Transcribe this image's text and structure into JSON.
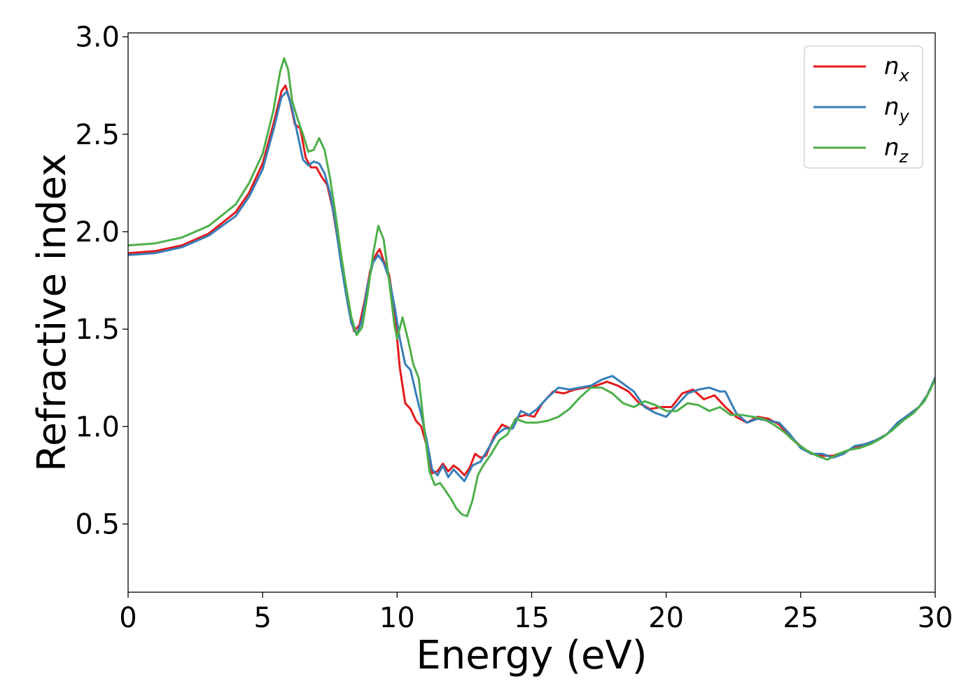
{
  "chart_data": {
    "type": "line",
    "xlabel": "Energy (eV)",
    "ylabel": "Refractive index",
    "xlim": [
      0,
      30
    ],
    "ylim": [
      0.15,
      3.02
    ],
    "xticks": [
      0,
      5,
      10,
      15,
      20,
      25,
      30
    ],
    "yticks": [
      0.5,
      1.0,
      1.5,
      2.0,
      2.5,
      3.0
    ],
    "xtick_labels": [
      "0",
      "5",
      "10",
      "15",
      "20",
      "25",
      "30"
    ],
    "ytick_labels": [
      "0.5",
      "1.0",
      "1.5",
      "2.0",
      "2.5",
      "3.0"
    ],
    "grid": false,
    "legend_position": "top-right",
    "series": [
      {
        "name": "n",
        "subscript": "x",
        "color": "#e41a1c",
        "points": [
          [
            0,
            1.89
          ],
          [
            1,
            1.9
          ],
          [
            2,
            1.93
          ],
          [
            3,
            1.99
          ],
          [
            4,
            2.1
          ],
          [
            4.5,
            2.2
          ],
          [
            5,
            2.35
          ],
          [
            5.4,
            2.55
          ],
          [
            5.7,
            2.72
          ],
          [
            5.85,
            2.75
          ],
          [
            6.0,
            2.68
          ],
          [
            6.2,
            2.55
          ],
          [
            6.4,
            2.53
          ],
          [
            6.6,
            2.38
          ],
          [
            6.8,
            2.33
          ],
          [
            7.0,
            2.33
          ],
          [
            7.2,
            2.28
          ],
          [
            7.4,
            2.24
          ],
          [
            7.6,
            2.12
          ],
          [
            7.8,
            1.95
          ],
          [
            8.0,
            1.77
          ],
          [
            8.2,
            1.6
          ],
          [
            8.4,
            1.49
          ],
          [
            8.6,
            1.52
          ],
          [
            8.8,
            1.65
          ],
          [
            9.0,
            1.8
          ],
          [
            9.2,
            1.88
          ],
          [
            9.35,
            1.91
          ],
          [
            9.5,
            1.85
          ],
          [
            9.7,
            1.78
          ],
          [
            9.9,
            1.6
          ],
          [
            10.1,
            1.3
          ],
          [
            10.3,
            1.12
          ],
          [
            10.5,
            1.09
          ],
          [
            10.7,
            1.03
          ],
          [
            10.9,
            1.0
          ],
          [
            11.1,
            0.9
          ],
          [
            11.3,
            0.76
          ],
          [
            11.5,
            0.77
          ],
          [
            11.7,
            0.81
          ],
          [
            11.9,
            0.77
          ],
          [
            12.1,
            0.8
          ],
          [
            12.3,
            0.78
          ],
          [
            12.5,
            0.75
          ],
          [
            12.7,
            0.79
          ],
          [
            12.9,
            0.86
          ],
          [
            13.1,
            0.84
          ],
          [
            13.3,
            0.85
          ],
          [
            13.6,
            0.95
          ],
          [
            13.9,
            1.01
          ],
          [
            14.2,
            0.99
          ],
          [
            14.5,
            1.05
          ],
          [
            14.8,
            1.06
          ],
          [
            15.1,
            1.05
          ],
          [
            15.4,
            1.12
          ],
          [
            15.8,
            1.18
          ],
          [
            16.2,
            1.17
          ],
          [
            16.6,
            1.19
          ],
          [
            17.0,
            1.2
          ],
          [
            17.4,
            1.21
          ],
          [
            17.8,
            1.23
          ],
          [
            18.2,
            1.21
          ],
          [
            18.6,
            1.18
          ],
          [
            19.0,
            1.12
          ],
          [
            19.4,
            1.09
          ],
          [
            19.8,
            1.1
          ],
          [
            20.2,
            1.1
          ],
          [
            20.6,
            1.17
          ],
          [
            21.0,
            1.19
          ],
          [
            21.4,
            1.14
          ],
          [
            21.8,
            1.16
          ],
          [
            22.2,
            1.1
          ],
          [
            22.6,
            1.05
          ],
          [
            23.0,
            1.02
          ],
          [
            23.4,
            1.05
          ],
          [
            23.8,
            1.04
          ],
          [
            24.2,
            1.01
          ],
          [
            24.6,
            0.95
          ],
          [
            25.0,
            0.9
          ],
          [
            25.4,
            0.86
          ],
          [
            25.8,
            0.85
          ],
          [
            26.2,
            0.85
          ],
          [
            26.6,
            0.87
          ],
          [
            27.0,
            0.89
          ],
          [
            27.4,
            0.91
          ],
          [
            27.8,
            0.93
          ],
          [
            28.2,
            0.96
          ],
          [
            28.6,
            1.01
          ],
          [
            29.0,
            1.06
          ],
          [
            29.4,
            1.1
          ],
          [
            29.7,
            1.16
          ],
          [
            30,
            1.25
          ]
        ]
      },
      {
        "name": "n",
        "subscript": "y",
        "color": "#377eb8",
        "points": [
          [
            0,
            1.88
          ],
          [
            1,
            1.89
          ],
          [
            2,
            1.92
          ],
          [
            3,
            1.98
          ],
          [
            4,
            2.08
          ],
          [
            4.5,
            2.18
          ],
          [
            5,
            2.32
          ],
          [
            5.4,
            2.52
          ],
          [
            5.7,
            2.69
          ],
          [
            5.9,
            2.72
          ],
          [
            6.1,
            2.63
          ],
          [
            6.3,
            2.5
          ],
          [
            6.5,
            2.37
          ],
          [
            6.7,
            2.34
          ],
          [
            6.9,
            2.36
          ],
          [
            7.1,
            2.35
          ],
          [
            7.3,
            2.3
          ],
          [
            7.5,
            2.2
          ],
          [
            7.7,
            2.05
          ],
          [
            7.9,
            1.85
          ],
          [
            8.1,
            1.68
          ],
          [
            8.3,
            1.53
          ],
          [
            8.5,
            1.47
          ],
          [
            8.7,
            1.55
          ],
          [
            8.9,
            1.72
          ],
          [
            9.1,
            1.84
          ],
          [
            9.3,
            1.88
          ],
          [
            9.5,
            1.84
          ],
          [
            9.7,
            1.76
          ],
          [
            9.9,
            1.62
          ],
          [
            10.1,
            1.45
          ],
          [
            10.3,
            1.32
          ],
          [
            10.5,
            1.29
          ],
          [
            10.7,
            1.17
          ],
          [
            10.9,
            1.06
          ],
          [
            11.1,
            0.93
          ],
          [
            11.3,
            0.78
          ],
          [
            11.5,
            0.75
          ],
          [
            11.7,
            0.8
          ],
          [
            11.9,
            0.74
          ],
          [
            12.1,
            0.78
          ],
          [
            12.3,
            0.75
          ],
          [
            12.5,
            0.72
          ],
          [
            12.8,
            0.8
          ],
          [
            13.1,
            0.82
          ],
          [
            13.4,
            0.89
          ],
          [
            13.7,
            0.96
          ],
          [
            14.0,
            0.99
          ],
          [
            14.3,
            0.99
          ],
          [
            14.6,
            1.08
          ],
          [
            14.9,
            1.06
          ],
          [
            15.2,
            1.09
          ],
          [
            15.6,
            1.15
          ],
          [
            16.0,
            1.2
          ],
          [
            16.4,
            1.19
          ],
          [
            16.8,
            1.2
          ],
          [
            17.2,
            1.21
          ],
          [
            17.6,
            1.24
          ],
          [
            18.0,
            1.26
          ],
          [
            18.4,
            1.22
          ],
          [
            18.8,
            1.18
          ],
          [
            19.2,
            1.1
          ],
          [
            19.6,
            1.07
          ],
          [
            20.0,
            1.05
          ],
          [
            20.4,
            1.11
          ],
          [
            20.8,
            1.17
          ],
          [
            21.2,
            1.19
          ],
          [
            21.6,
            1.2
          ],
          [
            22.0,
            1.18
          ],
          [
            22.2,
            1.18
          ],
          [
            22.6,
            1.07
          ],
          [
            23.0,
            1.02
          ],
          [
            23.4,
            1.04
          ],
          [
            23.8,
            1.03
          ],
          [
            24.2,
            1.02
          ],
          [
            24.6,
            0.96
          ],
          [
            25.0,
            0.89
          ],
          [
            25.4,
            0.86
          ],
          [
            25.8,
            0.86
          ],
          [
            26.2,
            0.84
          ],
          [
            26.6,
            0.86
          ],
          [
            27.0,
            0.9
          ],
          [
            27.4,
            0.91
          ],
          [
            27.8,
            0.93
          ],
          [
            28.2,
            0.96
          ],
          [
            28.6,
            1.02
          ],
          [
            29.0,
            1.06
          ],
          [
            29.4,
            1.1
          ],
          [
            29.7,
            1.16
          ],
          [
            30,
            1.25
          ]
        ]
      },
      {
        "name": "n",
        "subscript": "z",
        "color": "#4daf4a",
        "points": [
          [
            0,
            1.93
          ],
          [
            1,
            1.94
          ],
          [
            2,
            1.97
          ],
          [
            3,
            2.03
          ],
          [
            4,
            2.14
          ],
          [
            4.5,
            2.25
          ],
          [
            5,
            2.4
          ],
          [
            5.4,
            2.62
          ],
          [
            5.65,
            2.82
          ],
          [
            5.8,
            2.89
          ],
          [
            5.95,
            2.83
          ],
          [
            6.1,
            2.67
          ],
          [
            6.3,
            2.58
          ],
          [
            6.5,
            2.5
          ],
          [
            6.7,
            2.41
          ],
          [
            6.9,
            2.42
          ],
          [
            7.1,
            2.48
          ],
          [
            7.3,
            2.42
          ],
          [
            7.5,
            2.28
          ],
          [
            7.7,
            2.1
          ],
          [
            7.9,
            1.9
          ],
          [
            8.1,
            1.72
          ],
          [
            8.3,
            1.56
          ],
          [
            8.5,
            1.47
          ],
          [
            8.7,
            1.51
          ],
          [
            8.9,
            1.68
          ],
          [
            9.1,
            1.88
          ],
          [
            9.3,
            2.03
          ],
          [
            9.5,
            1.96
          ],
          [
            9.7,
            1.75
          ],
          [
            9.9,
            1.52
          ],
          [
            10.0,
            1.45
          ],
          [
            10.2,
            1.56
          ],
          [
            10.4,
            1.45
          ],
          [
            10.6,
            1.32
          ],
          [
            10.8,
            1.25
          ],
          [
            11.0,
            1.0
          ],
          [
            11.2,
            0.77
          ],
          [
            11.4,
            0.7
          ],
          [
            11.6,
            0.71
          ],
          [
            11.8,
            0.67
          ],
          [
            12.0,
            0.63
          ],
          [
            12.2,
            0.58
          ],
          [
            12.4,
            0.55
          ],
          [
            12.6,
            0.54
          ],
          [
            12.8,
            0.62
          ],
          [
            13.0,
            0.75
          ],
          [
            13.2,
            0.8
          ],
          [
            13.5,
            0.86
          ],
          [
            13.8,
            0.93
          ],
          [
            14.1,
            0.96
          ],
          [
            14.4,
            1.04
          ],
          [
            14.8,
            1.02
          ],
          [
            15.2,
            1.02
          ],
          [
            15.6,
            1.03
          ],
          [
            16.0,
            1.05
          ],
          [
            16.4,
            1.09
          ],
          [
            16.8,
            1.15
          ],
          [
            17.2,
            1.2
          ],
          [
            17.6,
            1.2
          ],
          [
            18.0,
            1.17
          ],
          [
            18.4,
            1.12
          ],
          [
            18.8,
            1.1
          ],
          [
            19.2,
            1.13
          ],
          [
            19.6,
            1.11
          ],
          [
            20.0,
            1.08
          ],
          [
            20.4,
            1.08
          ],
          [
            20.8,
            1.12
          ],
          [
            21.2,
            1.11
          ],
          [
            21.6,
            1.08
          ],
          [
            22.0,
            1.1
          ],
          [
            22.4,
            1.06
          ],
          [
            22.8,
            1.06
          ],
          [
            23.2,
            1.05
          ],
          [
            23.6,
            1.04
          ],
          [
            24.0,
            1.01
          ],
          [
            24.4,
            0.97
          ],
          [
            24.8,
            0.92
          ],
          [
            25.2,
            0.88
          ],
          [
            25.6,
            0.85
          ],
          [
            26.0,
            0.83
          ],
          [
            26.4,
            0.86
          ],
          [
            26.8,
            0.88
          ],
          [
            27.2,
            0.89
          ],
          [
            27.6,
            0.91
          ],
          [
            28.0,
            0.94
          ],
          [
            28.4,
            0.98
          ],
          [
            28.8,
            1.03
          ],
          [
            29.2,
            1.07
          ],
          [
            29.6,
            1.13
          ],
          [
            30,
            1.24
          ]
        ]
      }
    ]
  }
}
